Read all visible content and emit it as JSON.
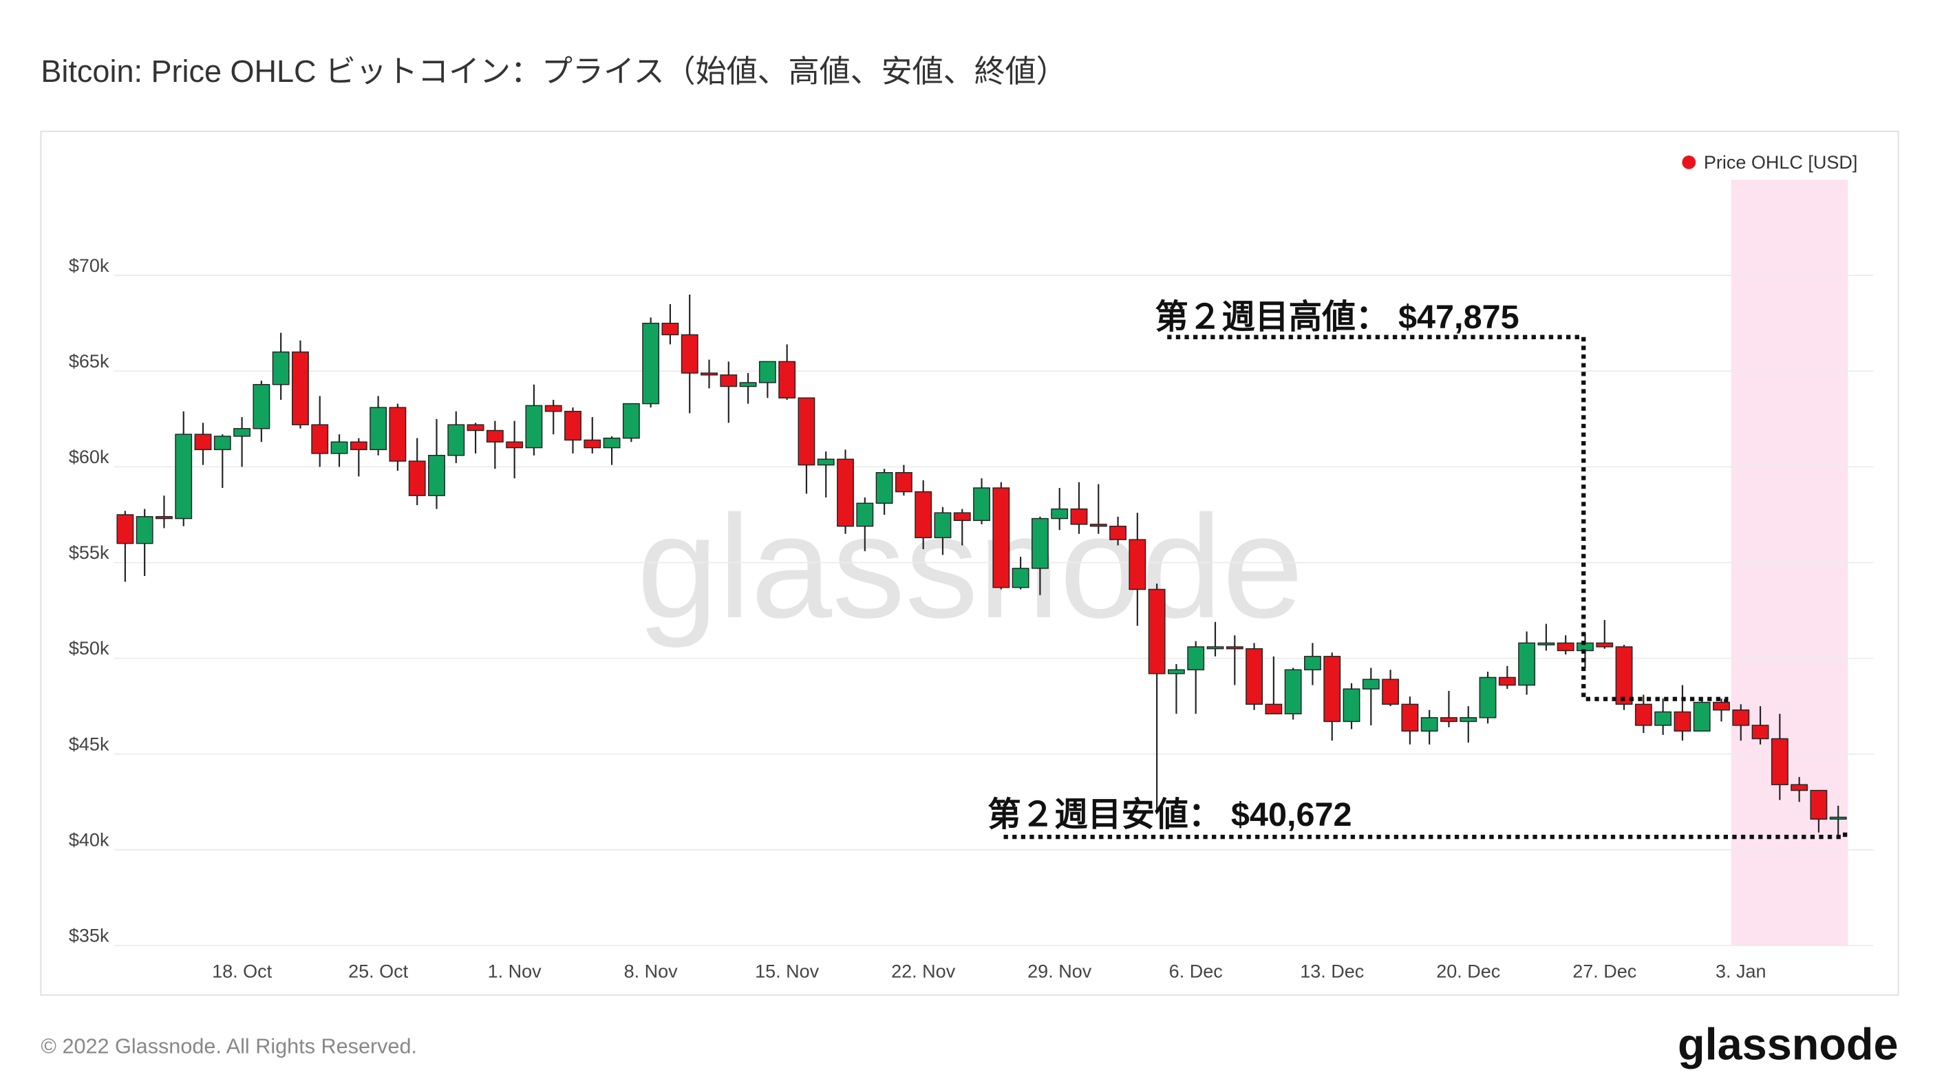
{
  "chart_data": {
    "type": "candlestick",
    "title": "Bitcoin: Price OHLC ビットコイン：プライス（始値、高値、安値、終値）",
    "categories": [
      null,
      null,
      null,
      null,
      null,
      null,
      "18. Oct",
      null,
      null,
      null,
      null,
      null,
      null,
      "25. Oct",
      null,
      null,
      null,
      null,
      null,
      null,
      "1. Nov",
      null,
      null,
      null,
      null,
      null,
      null,
      "8. Nov",
      null,
      null,
      null,
      null,
      null,
      null,
      "15. Nov",
      null,
      null,
      null,
      null,
      null,
      null,
      "22. Nov",
      null,
      null,
      null,
      null,
      null,
      null,
      "29. Nov",
      null,
      null,
      null,
      null,
      null,
      null,
      "6. Dec",
      null,
      null,
      null,
      null,
      null,
      null,
      "13. Dec",
      null,
      null,
      null,
      null,
      null,
      null,
      "20. Dec",
      null,
      null,
      null,
      null,
      null,
      null,
      "27. Dec",
      null,
      null,
      null,
      null,
      null,
      null,
      "3. Jan",
      null,
      null,
      null,
      null,
      null
    ],
    "series": [
      {
        "name": "Price OHLC [USD]",
        "color": "#e8141b",
        "up_color": "#11a35e",
        "down_color": "#e8141b",
        "open": [
          57500,
          56000,
          57400,
          57300,
          61700,
          60900,
          61600,
          62000,
          64300,
          66000,
          62200,
          60700,
          61300,
          60900,
          63100,
          60300,
          58500,
          60600,
          62200,
          61900,
          61300,
          61000,
          63200,
          62900,
          61400,
          61000,
          61500,
          63300,
          67500,
          66900,
          64900,
          64800,
          64200,
          64400,
          65500,
          63600,
          60100,
          60400,
          56900,
          58100,
          59700,
          58700,
          56300,
          57600,
          57200,
          58900,
          53700,
          54700,
          57300,
          57800,
          57000,
          56900,
          56200,
          53600,
          49200,
          49400,
          50600,
          50600,
          50500,
          47600,
          47100,
          49400,
          50100,
          46700,
          48400,
          48900,
          47600,
          46200,
          46900,
          46700,
          46900,
          49000,
          48600,
          50800,
          50800,
          50400,
          50800,
          50600,
          47600,
          46500,
          47200,
          46200,
          47700,
          47300,
          46500,
          45800,
          43400,
          43100,
          41600
        ],
        "high": [
          57700,
          57800,
          58500,
          62900,
          62300,
          61700,
          62600,
          64500,
          67000,
          66600,
          63700,
          61700,
          61500,
          63700,
          63300,
          61500,
          62500,
          62900,
          62300,
          62400,
          62400,
          64300,
          63500,
          63100,
          62600,
          61600,
          63300,
          67800,
          68500,
          69000,
          65600,
          65500,
          64900,
          65500,
          66400,
          63600,
          60800,
          60900,
          58400,
          59900,
          60100,
          59300,
          57900,
          57800,
          59400,
          59200,
          55300,
          57400,
          58900,
          59200,
          59100,
          57400,
          57600,
          53900,
          49700,
          50900,
          51900,
          51200,
          50800,
          50100,
          49500,
          50800,
          50300,
          48700,
          49500,
          49400,
          48000,
          47300,
          48300,
          47500,
          49300,
          49600,
          51400,
          51800,
          51200,
          51300,
          52000,
          50700,
          48100,
          47900,
          48600,
          47900,
          47900,
          47600,
          47500,
          47100,
          43800,
          43100,
          42300
        ],
        "low": [
          54000,
          54300,
          56800,
          56900,
          60100,
          58900,
          60000,
          61300,
          63500,
          62000,
          60000,
          60000,
          59500,
          60600,
          59800,
          58000,
          57800,
          60200,
          60700,
          59900,
          59400,
          60600,
          61700,
          60700,
          60700,
          60100,
          61300,
          63100,
          66400,
          62800,
          64100,
          62300,
          63300,
          63600,
          63500,
          58600,
          58400,
          56500,
          55600,
          57500,
          58500,
          55700,
          55400,
          55900,
          57000,
          53600,
          53600,
          53300,
          56700,
          56500,
          56500,
          55900,
          51700,
          42000,
          47100,
          47100,
          50100,
          48600,
          47300,
          47200,
          46800,
          48600,
          45700,
          46300,
          46500,
          47500,
          45500,
          45500,
          46400,
          45600,
          46600,
          48400,
          48100,
          50400,
          50200,
          49500,
          50500,
          47300,
          46100,
          46000,
          45700,
          46200,
          46700,
          45700,
          45500,
          42600,
          42500,
          40900,
          40600
        ],
        "close": [
          56000,
          57400,
          57300,
          61700,
          60900,
          61600,
          62000,
          64300,
          66000,
          62200,
          60700,
          61300,
          60900,
          63100,
          60300,
          58500,
          60600,
          62200,
          61900,
          61300,
          61000,
          63200,
          62900,
          61400,
          61000,
          61500,
          63300,
          67500,
          66900,
          64900,
          64800,
          64200,
          64400,
          65500,
          63600,
          60100,
          60400,
          56900,
          58100,
          59700,
          58700,
          56300,
          57600,
          57200,
          58900,
          53700,
          54700,
          57300,
          57800,
          57000,
          56900,
          56200,
          53600,
          49200,
          49400,
          50600,
          50600,
          50500,
          47600,
          47100,
          49400,
          50100,
          46700,
          48400,
          48900,
          47600,
          46200,
          46900,
          46700,
          46900,
          49000,
          48600,
          50800,
          50800,
          50400,
          50800,
          50600,
          47600,
          46500,
          47200,
          46200,
          47700,
          47300,
          46500,
          45800,
          43400,
          43100,
          41600,
          41700
        ]
      }
    ],
    "ylim": [
      35000,
      75000
    ],
    "yticks": [
      {
        "value": 35000,
        "label": "$35k"
      },
      {
        "value": 40000,
        "label": "$40k"
      },
      {
        "value": 45000,
        "label": "$45k"
      },
      {
        "value": 50000,
        "label": "$50k"
      },
      {
        "value": 55000,
        "label": "$55k"
      },
      {
        "value": 60000,
        "label": "$60k"
      },
      {
        "value": 65000,
        "label": "$65k"
      },
      {
        "value": 70000,
        "label": "$70k"
      }
    ],
    "grid": true,
    "legend": "top-right",
    "highlight": {
      "start_index": 83,
      "end_index": 88,
      "color": "#fce3ef"
    },
    "annotations": [
      {
        "label": "第２週目高値： $47,875",
        "value": 47875
      },
      {
        "label": "第２週目安値： $40,672",
        "value": 40672
      }
    ]
  },
  "watermark": "glassnode",
  "footer": {
    "copyright": "© 2022 Glassnode. All Rights Reserved.",
    "logo": "glassnode"
  }
}
